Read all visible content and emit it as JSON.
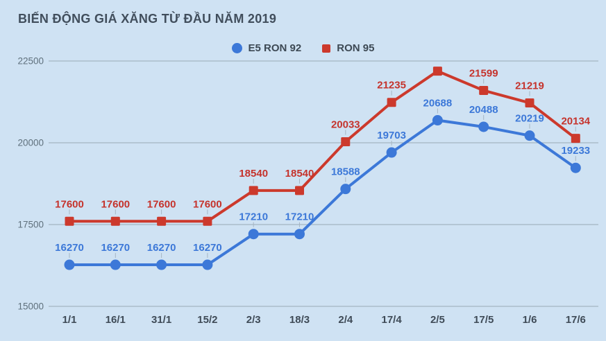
{
  "colors": {
    "background": "#cfe2f3",
    "grid": "#9aa9b6",
    "leader": "#a6b5c2",
    "title_text": "#414e5c",
    "legend_text": "#3d4954",
    "y_axis_text": "#5f707c",
    "x_axis_text": "#3f4b57"
  },
  "chart_data": {
    "type": "line",
    "title": "BIẾN ĐỘNG GIÁ XĂNG TỪ ĐẦU NĂM 2019",
    "categories": [
      "1/1",
      "16/1",
      "31/1",
      "15/2",
      "2/3",
      "18/3",
      "2/4",
      "17/4",
      "2/5",
      "17/5",
      "1/6",
      "17/6"
    ],
    "series": [
      {
        "name": "E5 RON 92",
        "marker": "circle",
        "color": "#3c78d8",
        "label_color": "#3c78d8",
        "values": [
          16270,
          16270,
          16270,
          16270,
          17210,
          17210,
          18588,
          19703,
          20688,
          20488,
          20219,
          19233
        ],
        "labels": [
          "16270",
          "16270",
          "16270",
          "16270",
          "17210",
          "17210",
          "18588",
          "19703",
          "20688",
          "20488",
          "20219",
          "19233"
        ]
      },
      {
        "name": "RON 95",
        "marker": "square",
        "color": "#cc392c",
        "label_color": "#c5332c",
        "values": [
          17600,
          17600,
          17600,
          17600,
          18540,
          18540,
          20033,
          21235,
          22191,
          21599,
          21219,
          20134
        ],
        "labels": [
          "17600",
          "17600",
          "17600",
          "17600",
          "18540",
          "18540",
          "20033",
          "21235",
          "",
          "21599",
          "21219",
          "20134"
        ]
      }
    ],
    "ylim": [
      15000,
      22500
    ],
    "yticks": [
      15000,
      17500,
      20000,
      22500
    ],
    "grid": true,
    "legend_position": "top",
    "note_unlabeled_point": "RON 95 value at 2/5 has no visible data label; value estimated from gridlines"
  }
}
